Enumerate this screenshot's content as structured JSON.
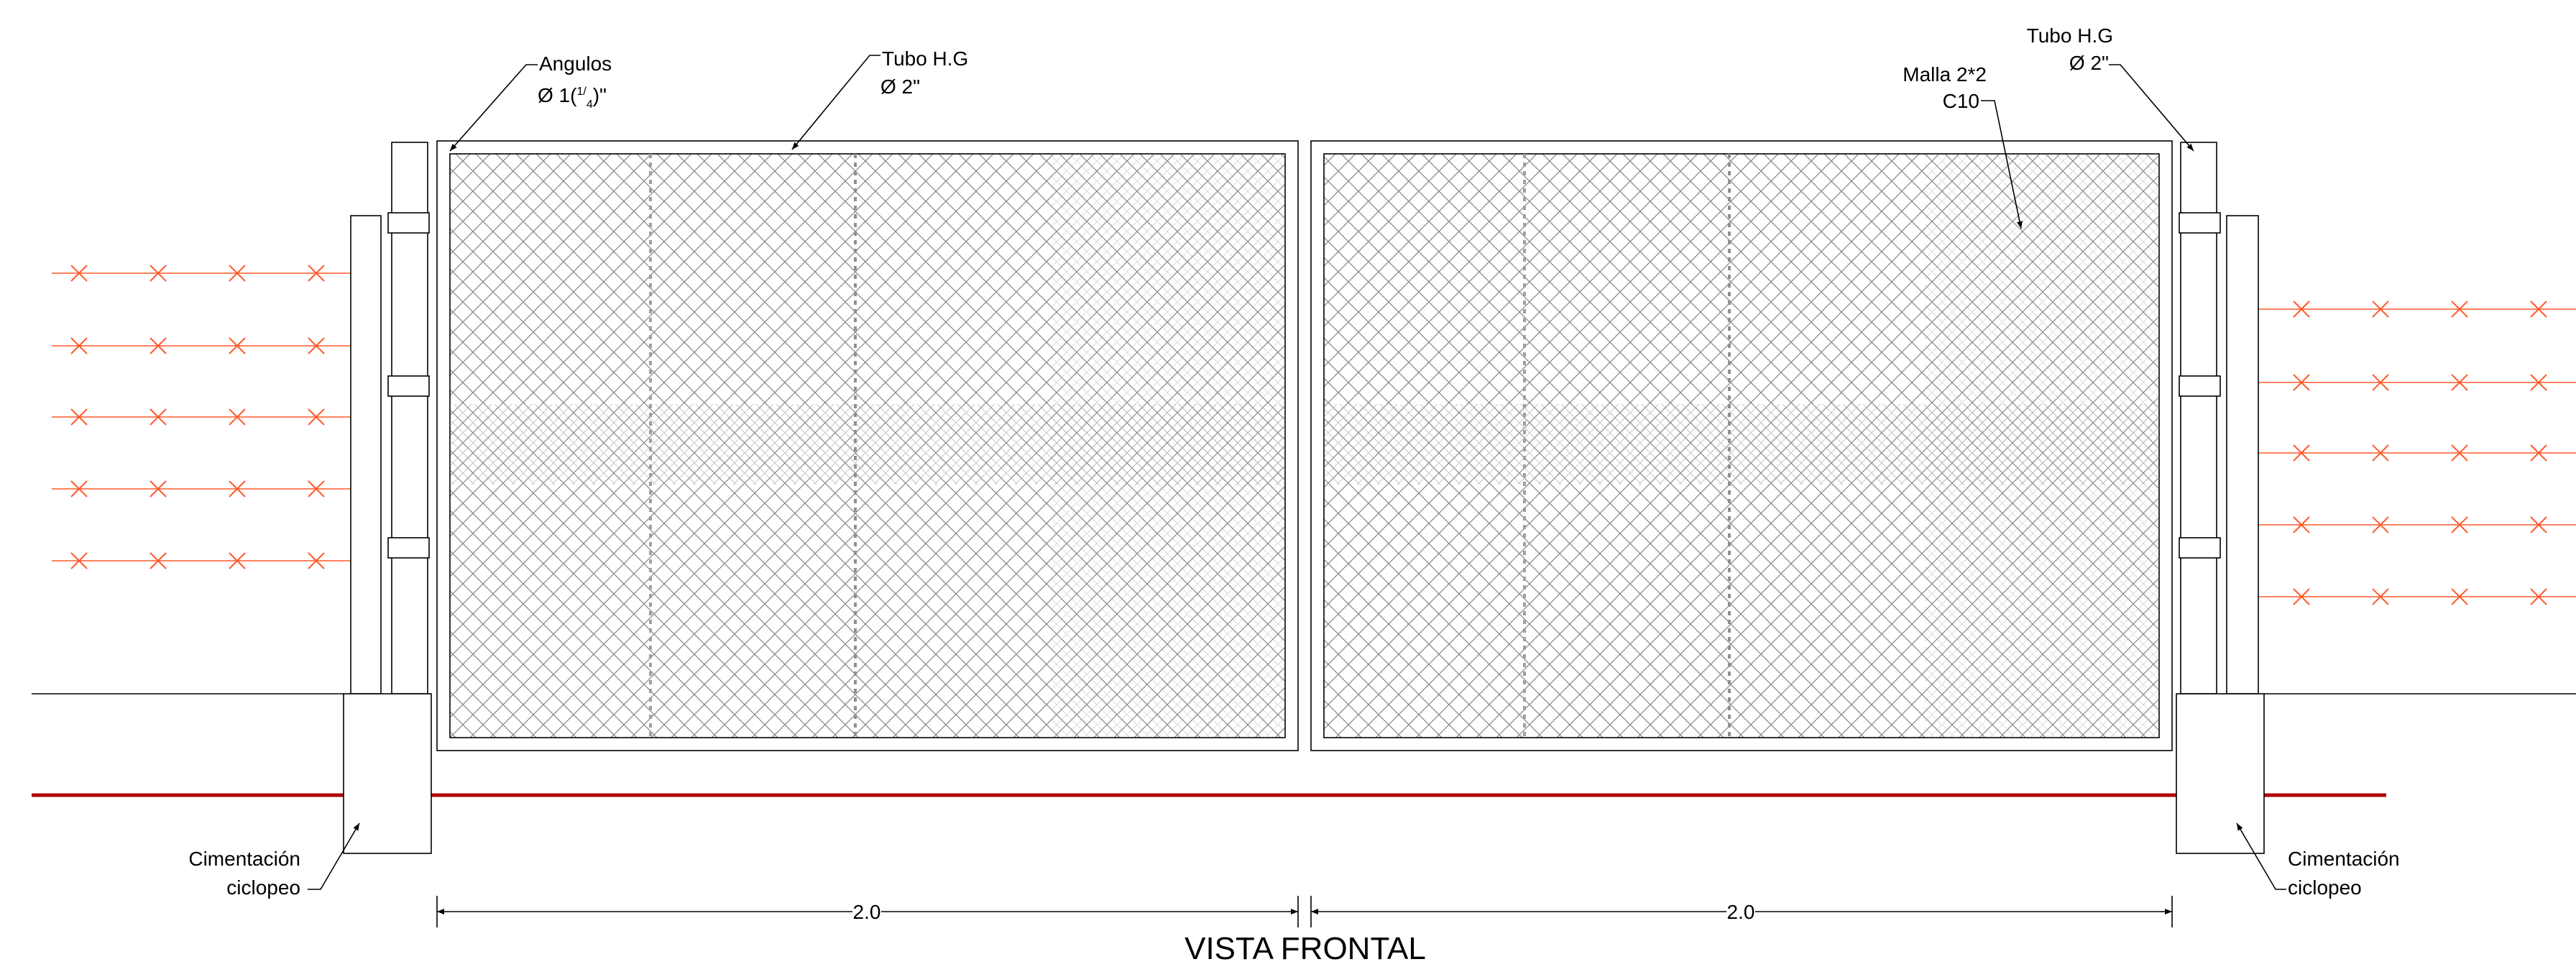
{
  "drawing": {
    "title": "VISTA FRONTAL",
    "labels": {
      "angulos_line1": "Angulos",
      "angulos_line2_prefix": "Ø 1(",
      "angulos_frac_num": "1",
      "angulos_frac_den": "4",
      "angulos_line2_suffix": ")\"",
      "tubo_left_line1": "Tubo H.G",
      "tubo_left_line2": "Ø 2\"",
      "tubo_right_line1": "Tubo H.G",
      "tubo_right_line2": "Ø 2\"",
      "malla_line1": "Malla 2*2",
      "malla_line2": "C10",
      "cim_left_line1": "Cimentación",
      "cim_left_line2": "ciclopeo",
      "cim_right_line1": "Cimentación",
      "cim_right_line2": "ciclopeo"
    },
    "dimensions": {
      "left_span": "2.0",
      "right_span": "2.0"
    },
    "colors": {
      "linework": "#000000",
      "mesh": "#9a9a9a",
      "barbed_wire": "#ff5a2a",
      "reference_line": "#b00000",
      "background": "#ffffff"
    }
  }
}
